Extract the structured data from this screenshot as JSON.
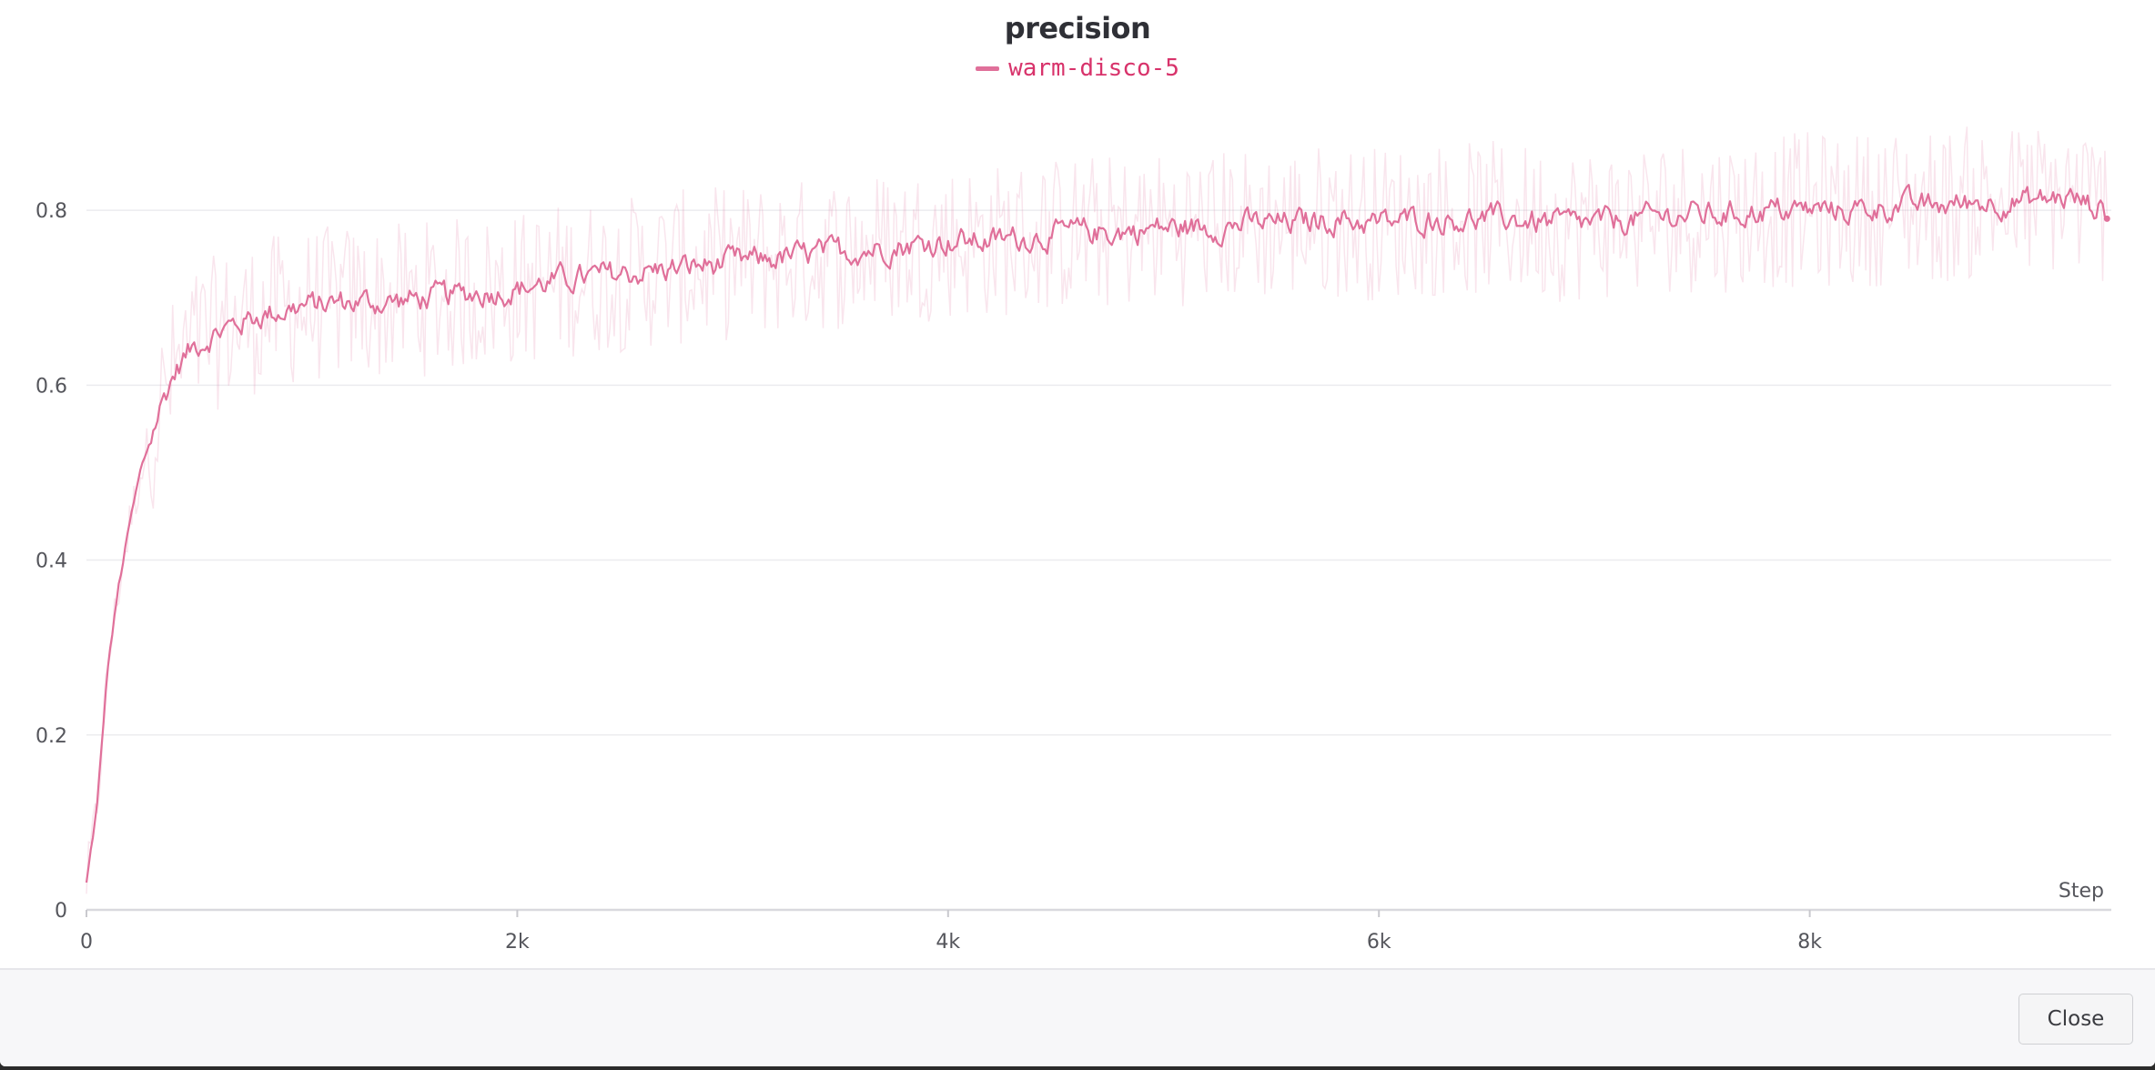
{
  "chart_data": {
    "type": "line",
    "title": "precision",
    "xlabel": "Step",
    "ylabel": "",
    "xlim": [
      0,
      9400
    ],
    "ylim": [
      0,
      0.9
    ],
    "grid": true,
    "legend_position": "top-center",
    "x_ticks": [
      {
        "value": 0,
        "label": "0"
      },
      {
        "value": 2000,
        "label": "2k"
      },
      {
        "value": 4000,
        "label": "4k"
      },
      {
        "value": 6000,
        "label": "6k"
      },
      {
        "value": 8000,
        "label": "8k"
      }
    ],
    "y_ticks": [
      {
        "value": 0,
        "label": "0"
      },
      {
        "value": 0.2,
        "label": "0.2"
      },
      {
        "value": 0.4,
        "label": "0.4"
      },
      {
        "value": 0.6,
        "label": "0.6"
      },
      {
        "value": 0.8,
        "label": "0.8"
      }
    ],
    "series": [
      {
        "name": "warm-disco-5",
        "color": "#e0709a",
        "x": [
          0,
          50,
          100,
          150,
          200,
          250,
          300,
          350,
          400,
          450,
          500,
          600,
          700,
          800,
          900,
          1000,
          1200,
          1400,
          1600,
          1800,
          2000,
          2200,
          2400,
          2600,
          2800,
          3000,
          3200,
          3400,
          3600,
          3800,
          4000,
          4200,
          4400,
          4600,
          4800,
          5000,
          5200,
          5400,
          5600,
          5800,
          6000,
          6200,
          6400,
          6600,
          6800,
          7000,
          7200,
          7400,
          7600,
          7800,
          8000,
          8200,
          8400,
          8600,
          8800,
          9000,
          9200,
          9380
        ],
        "y": [
          0.03,
          0.12,
          0.28,
          0.37,
          0.44,
          0.5,
          0.54,
          0.58,
          0.61,
          0.63,
          0.645,
          0.66,
          0.67,
          0.68,
          0.685,
          0.69,
          0.695,
          0.695,
          0.7,
          0.705,
          0.71,
          0.72,
          0.725,
          0.73,
          0.735,
          0.74,
          0.745,
          0.75,
          0.755,
          0.76,
          0.765,
          0.765,
          0.77,
          0.775,
          0.775,
          0.78,
          0.78,
          0.785,
          0.785,
          0.79,
          0.785,
          0.79,
          0.79,
          0.79,
          0.785,
          0.785,
          0.79,
          0.795,
          0.795,
          0.8,
          0.8,
          0.8,
          0.805,
          0.805,
          0.81,
          0.81,
          0.815,
          0.8
        ]
      }
    ]
  },
  "footer": {
    "close_label": "Close"
  }
}
